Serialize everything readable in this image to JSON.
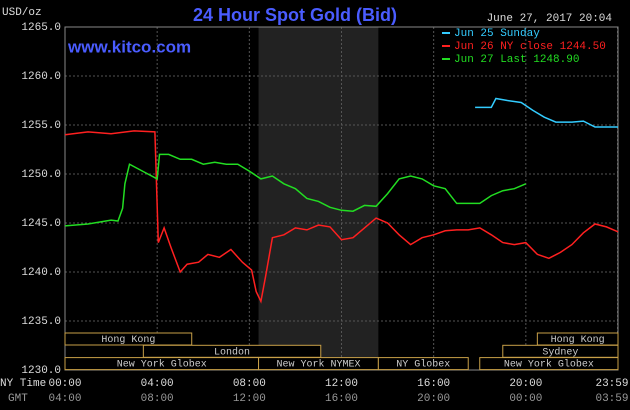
{
  "chart_data": {
    "type": "line",
    "title": "24 Hour Spot Gold (Bid)",
    "website": "www.kitco.com",
    "timestamp": "June 27, 2017 20:04",
    "y_label": "USD/oz",
    "x_label": "NY Time",
    "x2_label": "GMT",
    "xlim": [
      0,
      24
    ],
    "xticks": [
      {
        "value": 0,
        "label": "00:00"
      },
      {
        "value": 4,
        "label": "04:00"
      },
      {
        "value": 8,
        "label": "08:00"
      },
      {
        "value": 12,
        "label": "12:00"
      },
      {
        "value": 16,
        "label": "16:00"
      },
      {
        "value": 20,
        "label": "20:00"
      },
      {
        "value": 23.98,
        "label": "23:59"
      }
    ],
    "x2ticks": [
      {
        "value": 0,
        "label": "04:00"
      },
      {
        "value": 4,
        "label": "08:00"
      },
      {
        "value": 8,
        "label": "12:00"
      },
      {
        "value": 12,
        "label": "16:00"
      },
      {
        "value": 16,
        "label": "20:00"
      },
      {
        "value": 20,
        "label": "00:00"
      },
      {
        "value": 23.98,
        "label": "03:59"
      }
    ],
    "ylim": [
      1230,
      1265
    ],
    "yticks": [
      {
        "value": 1230,
        "label": "1230.0"
      },
      {
        "value": 1235,
        "label": "1235.0"
      },
      {
        "value": 1240,
        "label": "1240.0"
      },
      {
        "value": 1245,
        "label": "1245.0"
      },
      {
        "value": 1250,
        "label": "1250.0"
      },
      {
        "value": 1255,
        "label": "1255.0"
      },
      {
        "value": 1260,
        "label": "1260.0"
      },
      {
        "value": 1265,
        "label": "1265.0"
      }
    ],
    "grid": true,
    "sessions": [
      [
        {
          "label": "Hong Kong",
          "start": 0,
          "end": 5.5
        },
        {
          "label": "Hong Kong",
          "start": 20.5,
          "end": 24
        }
      ],
      [
        {
          "label": "London",
          "start": 3.4,
          "end": 11.1
        },
        {
          "label": "Sydney",
          "start": 19.0,
          "end": 24
        }
      ],
      [
        {
          "label": "New York Globex",
          "start": 0,
          "end": 8.4
        },
        {
          "label": "New York NYMEX",
          "start": 8.4,
          "end": 13.6
        },
        {
          "label": "NY Globex",
          "start": 13.6,
          "end": 17.5
        },
        {
          "label": "New York Globex",
          "start": 18.0,
          "end": 24
        }
      ]
    ],
    "series": [
      {
        "name": "Jun 25 Sunday",
        "color": "#33ccff",
        "x": [
          17.8,
          18.5,
          18.7,
          19.2,
          19.8,
          20.3,
          20.8,
          21.3,
          22.0,
          22.5,
          23.0,
          23.5,
          24.0
        ],
        "values": [
          1256.8,
          1256.8,
          1257.7,
          1257.5,
          1257.3,
          1256.5,
          1255.8,
          1255.3,
          1255.3,
          1255.4,
          1254.8,
          1254.8,
          1254.8
        ]
      },
      {
        "name": "Jun 26 NY close 1244.50",
        "color": "#ff2020",
        "x": [
          0,
          1,
          2,
          3,
          3.9,
          4.05,
          4.3,
          4.6,
          5.0,
          5.3,
          5.8,
          6.2,
          6.7,
          7.2,
          7.7,
          8.1,
          8.3,
          8.5,
          8.7,
          9.0,
          9.5,
          10.0,
          10.5,
          11.0,
          11.5,
          12.0,
          12.5,
          13.0,
          13.5,
          14.0,
          14.5,
          15.0,
          15.5,
          16.0,
          16.5,
          17.0,
          17.5,
          18.0,
          18.5,
          19.0,
          19.5,
          20.0,
          20.5,
          21.0,
          21.5,
          22.0,
          22.5,
          23.0,
          23.5,
          24.0
        ],
        "values": [
          1254.0,
          1254.3,
          1254.1,
          1254.4,
          1254.3,
          1243.0,
          1244.5,
          1242.5,
          1240.0,
          1240.8,
          1241.0,
          1241.8,
          1241.5,
          1242.3,
          1241.0,
          1240.2,
          1238.0,
          1237.0,
          1239.5,
          1243.5,
          1243.8,
          1244.5,
          1244.3,
          1244.8,
          1244.6,
          1243.3,
          1243.5,
          1244.5,
          1245.5,
          1245.0,
          1243.8,
          1242.8,
          1243.5,
          1243.8,
          1244.2,
          1244.3,
          1244.3,
          1244.5,
          1243.8,
          1243.0,
          1242.8,
          1243.0,
          1241.8,
          1241.4,
          1242.0,
          1242.8,
          1244.0,
          1244.9,
          1244.6,
          1244.1
        ]
      },
      {
        "name": "Jun 27 Last 1248.90",
        "color": "#22dd22",
        "x": [
          0,
          1,
          2,
          2.3,
          2.5,
          2.6,
          2.8,
          3.2,
          3.6,
          4.0,
          4.1,
          4.5,
          5.0,
          5.5,
          6.0,
          6.5,
          7.0,
          7.5,
          8.0,
          8.5,
          9.0,
          9.5,
          10.0,
          10.5,
          11.0,
          11.5,
          12.0,
          12.5,
          13.0,
          13.5,
          14.0,
          14.5,
          15.0,
          15.5,
          16.0,
          16.5,
          17.0,
          17.5,
          18.0,
          18.5,
          19.0,
          19.5,
          20.0
        ],
        "values": [
          1244.7,
          1244.9,
          1245.3,
          1245.2,
          1246.5,
          1249.0,
          1251.0,
          1250.5,
          1250.0,
          1249.5,
          1252.0,
          1252.0,
          1251.5,
          1251.5,
          1251.0,
          1251.2,
          1251.0,
          1251.0,
          1250.3,
          1249.5,
          1249.8,
          1249.0,
          1248.5,
          1247.5,
          1247.2,
          1246.6,
          1246.3,
          1246.2,
          1246.8,
          1246.7,
          1248.0,
          1249.5,
          1249.8,
          1249.5,
          1248.8,
          1248.5,
          1247.0,
          1247.0,
          1247.0,
          1247.8,
          1248.3,
          1248.5,
          1249.0
        ]
      }
    ]
  }
}
